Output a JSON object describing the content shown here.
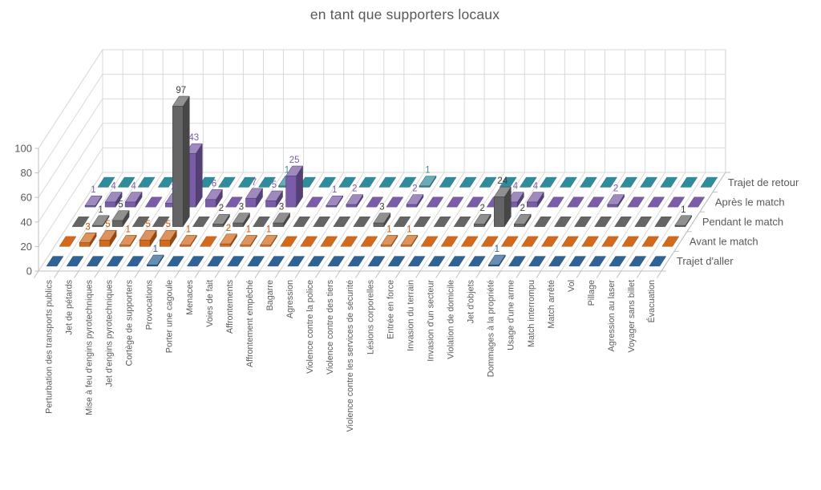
{
  "chart_data": {
    "type": "bar",
    "subtype": "3d-bar-grid",
    "title": "en tant que supporters locaux",
    "grid": true,
    "legend_position": "right-of-rows",
    "y_axis": {
      "ticks": [
        0,
        20,
        40,
        60,
        80,
        100
      ],
      "min": 0,
      "max": 100
    },
    "text_color": "#595959",
    "grid_color": "#D9D9D9",
    "axis_line_color": "#BFBFBF",
    "categories": [
      "Perturbation des transports publics",
      "Jet de pétards",
      "Mise à feu d'engins pyrotechniques",
      "Jet d'engins pyrotechniques",
      "Cortège de supporters",
      "Provocations",
      "Porter une cagoule",
      "Menaces",
      "Voies de fait",
      "Affrontements",
      "Affrontement empêché",
      "Bagarre",
      "Agression",
      "Violence contre la police",
      "Violence contre des tiers",
      "Violence contre les services de sécurité",
      "Lésions corporelles",
      "Entrée en force",
      "Invasion du terrain",
      "Invasion d'un secteur",
      "Violation de domicile",
      "Jet d'objets",
      "Dommages à la propriété",
      "Usage d'une arme",
      "Match interrompu",
      "Match arrêté",
      "Vol",
      "Pillage",
      "Agression au laser",
      "Voyager sans billet",
      "Évacuation"
    ],
    "series": [
      {
        "name": "Trajet d'aller",
        "color": "#2F6295",
        "label_color": "#2E5E94",
        "values": [
          0,
          0,
          0,
          0,
          0,
          1,
          0,
          0,
          0,
          0,
          0,
          0,
          0,
          0,
          0,
          0,
          0,
          0,
          0,
          0,
          0,
          0,
          1,
          0,
          0,
          0,
          0,
          0,
          0,
          0,
          0
        ]
      },
      {
        "name": "Avant le match",
        "color": "#D2691C",
        "label_color": "#C55A11",
        "values": [
          0,
          3,
          5,
          1,
          5,
          5,
          1,
          0,
          2,
          1,
          1,
          0,
          0,
          0,
          0,
          0,
          1,
          1,
          0,
          0,
          0,
          0,
          0,
          0,
          0,
          0,
          0,
          0,
          0,
          0,
          0
        ]
      },
      {
        "name": "Pendant le match",
        "color": "#656565",
        "label_color": "#3F3F3F",
        "values": [
          0,
          1,
          5,
          0,
          0,
          97,
          0,
          2,
          3,
          0,
          3,
          0,
          0,
          0,
          0,
          3,
          0,
          0,
          0,
          0,
          2,
          24,
          2,
          0,
          0,
          0,
          0,
          0,
          0,
          0,
          1
        ]
      },
      {
        "name": "Après le match",
        "color": "#7A5CA8",
        "label_color": "#7A5CA8",
        "values": [
          1,
          4,
          4,
          0,
          3,
          43,
          6,
          0,
          7,
          5,
          25,
          0,
          1,
          2,
          0,
          0,
          2,
          0,
          0,
          0,
          0,
          4,
          4,
          0,
          0,
          0,
          2,
          0,
          0,
          0,
          0
        ]
      },
      {
        "name": "Trajet de retour",
        "color": "#2E8C9C",
        "label_color": "#2E8C9C",
        "values": [
          0,
          0,
          0,
          0,
          0,
          0,
          0,
          0,
          0,
          1,
          0,
          0,
          0,
          0,
          0,
          0,
          1,
          0,
          0,
          0,
          0,
          0,
          0,
          0,
          0,
          0,
          0,
          0,
          0,
          0,
          0
        ]
      }
    ]
  }
}
